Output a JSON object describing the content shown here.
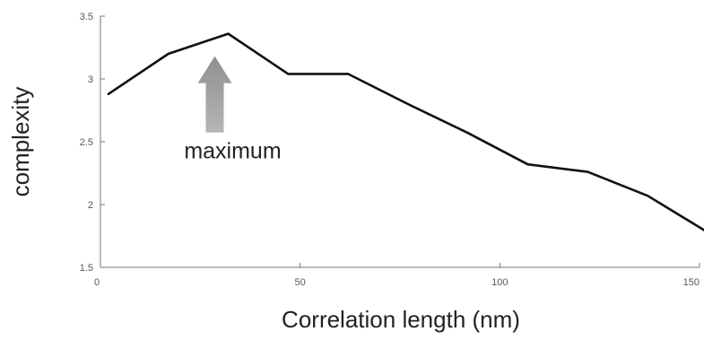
{
  "chart_data": {
    "type": "line",
    "xlabel": "Correlation length (nm)",
    "ylabel": "complexity",
    "xlim": [
      0,
      150
    ],
    "ylim": [
      1.5,
      3.5
    ],
    "xticks": [
      0,
      50,
      100,
      150
    ],
    "yticks": [
      1.5,
      2,
      2.5,
      3,
      3.5
    ],
    "x_tick_labels": [
      "0",
      "50",
      "100",
      "150"
    ],
    "y_tick_labels": [
      "1.5",
      "2",
      "2.5",
      "3",
      "3.5"
    ],
    "grid": false,
    "series": [
      {
        "x": [
          2,
          17,
          32,
          47,
          62,
          77,
          92,
          107,
          122,
          137,
          152
        ],
        "y": [
          2.88,
          3.2,
          3.36,
          3.04,
          3.04,
          2.8,
          2.57,
          2.32,
          2.26,
          2.07,
          1.78
        ],
        "color": "#111111"
      }
    ],
    "annotations": [
      {
        "text": "maximum",
        "x": 32,
        "y": 3.36,
        "arrow_color": "#9a9a9a"
      }
    ]
  }
}
